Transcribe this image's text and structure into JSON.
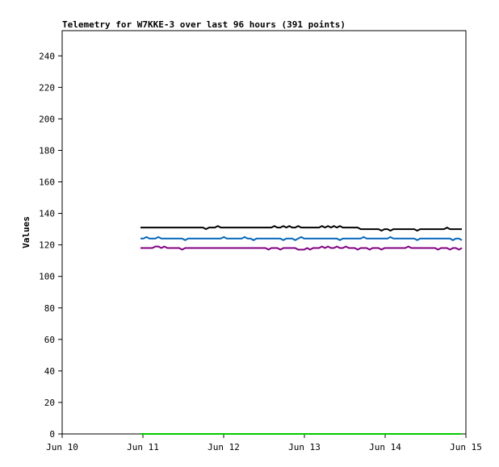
{
  "chart_data": {
    "type": "line",
    "title": "Telemetry for W7KKE-3 over last 96 hours (391 points)",
    "ylabel": "Values",
    "xlabel": "",
    "ylim": [
      0,
      256
    ],
    "xlim": [
      0,
      5
    ],
    "yticks": [
      0,
      20,
      40,
      60,
      80,
      100,
      120,
      140,
      160,
      180,
      200,
      220,
      240
    ],
    "xticks": [
      {
        "value": 0,
        "label": "Jun 10"
      },
      {
        "value": 1,
        "label": "Jun 11"
      },
      {
        "value": 2,
        "label": "Jun 12"
      },
      {
        "value": 3,
        "label": "Jun 13"
      },
      {
        "value": 4,
        "label": "Jun 14"
      },
      {
        "value": 5,
        "label": "Jun 15"
      }
    ],
    "x_start": 0.97,
    "x_end": 4.95,
    "series": [
      {
        "color": "#000000",
        "values": [
          131,
          131,
          131,
          131,
          131,
          131,
          131,
          131,
          131,
          131,
          131,
          131,
          131,
          131,
          131,
          131,
          131,
          131,
          131,
          131,
          131,
          131,
          130,
          131,
          131,
          131,
          132,
          131,
          131,
          131,
          131,
          131,
          131,
          131,
          131,
          131,
          131,
          131,
          131,
          131,
          131,
          131,
          131,
          131,
          131,
          132,
          131,
          131,
          132,
          131,
          132,
          131,
          131,
          132,
          131,
          131,
          131,
          131,
          131,
          131,
          131,
          132,
          131,
          132,
          131,
          132,
          131,
          132,
          131,
          131,
          131,
          131,
          131,
          131,
          130,
          130,
          130,
          130,
          130,
          130,
          130,
          129,
          130,
          130,
          129,
          130,
          130,
          130,
          130,
          130,
          130,
          130,
          130,
          129,
          130,
          130,
          130,
          130,
          130,
          130,
          130,
          130,
          130,
          131,
          130,
          130,
          130,
          130,
          130
        ]
      },
      {
        "color": "#0066bb",
        "values": [
          124,
          124,
          125,
          124,
          124,
          124,
          125,
          124,
          124,
          124,
          124,
          124,
          124,
          124,
          124,
          123,
          124,
          124,
          124,
          124,
          124,
          124,
          124,
          124,
          124,
          124,
          124,
          124,
          125,
          124,
          124,
          124,
          124,
          124,
          124,
          125,
          124,
          124,
          123,
          124,
          124,
          124,
          124,
          124,
          124,
          124,
          124,
          124,
          123,
          124,
          124,
          124,
          123,
          124,
          125,
          124,
          124,
          124,
          124,
          124,
          124,
          124,
          124,
          124,
          124,
          124,
          124,
          123,
          124,
          124,
          124,
          124,
          124,
          124,
          124,
          125,
          124,
          124,
          124,
          124,
          124,
          124,
          124,
          124,
          125,
          124,
          124,
          124,
          124,
          124,
          124,
          124,
          124,
          123,
          124,
          124,
          124,
          124,
          124,
          124,
          124,
          124,
          124,
          124,
          124,
          123,
          124,
          124,
          123
        ]
      },
      {
        "color": "#800080",
        "values": [
          118,
          118,
          118,
          118,
          118,
          119,
          119,
          118,
          119,
          118,
          118,
          118,
          118,
          118,
          117,
          118,
          118,
          118,
          118,
          118,
          118,
          118,
          118,
          118,
          118,
          118,
          118,
          118,
          118,
          118,
          118,
          118,
          118,
          118,
          118,
          118,
          118,
          118,
          118,
          118,
          118,
          118,
          118,
          117,
          118,
          118,
          118,
          117,
          118,
          118,
          118,
          118,
          118,
          117,
          117,
          117,
          118,
          117,
          118,
          118,
          118,
          119,
          118,
          119,
          118,
          118,
          119,
          118,
          118,
          119,
          118,
          118,
          118,
          117,
          118,
          118,
          118,
          117,
          118,
          118,
          118,
          117,
          118,
          118,
          118,
          118,
          118,
          118,
          118,
          118,
          119,
          118,
          118,
          118,
          118,
          118,
          118,
          118,
          118,
          118,
          117,
          118,
          118,
          118,
          117,
          118,
          118,
          117,
          118
        ]
      },
      {
        "color": "#00cc00",
        "values": [
          0,
          0,
          0,
          0,
          0,
          0,
          0,
          0,
          0,
          0,
          0,
          0,
          0,
          0,
          0,
          0,
          0,
          0,
          0,
          0
        ]
      }
    ],
    "grid": false,
    "legend": "none"
  }
}
